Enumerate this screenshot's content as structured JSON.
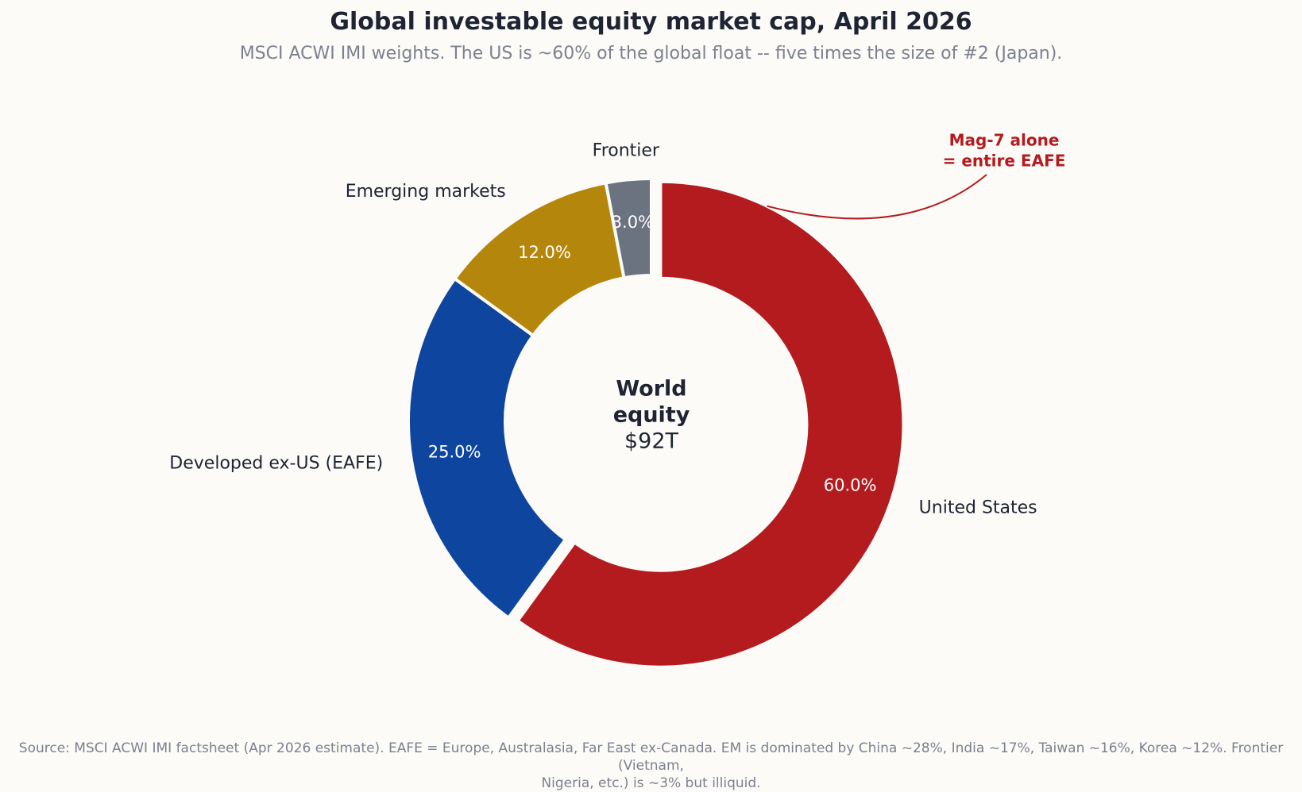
{
  "title": "Global investable equity market cap, April 2026",
  "subtitle": "MSCI ACWI IMI weights. The US is ~60% of the global float -- five times the size of #2 (Japan).",
  "footnote": {
    "line1": "Source: MSCI ACWI IMI factsheet (Apr 2026 estimate). EAFE = Europe, Australasia, Far East ex-Canada. EM is dominated by China ~28%, India ~17%, Taiwan ~16%, Korea ~12%. Frontier (Vietnam,",
    "line2": "Nigeria, etc.) is ~3% but illiquid."
  },
  "chart_data": {
    "type": "pie",
    "donut": true,
    "center_label": [
      "World",
      "equity",
      "$92T"
    ],
    "start_angle_deg": 90,
    "direction": "clockwise",
    "slices": [
      {
        "label": "United States",
        "value": 60.0,
        "pct_label": "60.0%",
        "color": "#b31b1f",
        "exploded": true
      },
      {
        "label": "Developed ex-US (EAFE)",
        "value": 25.0,
        "pct_label": "25.0%",
        "color": "#0e469f",
        "exploded": false
      },
      {
        "label": "Emerging markets",
        "value": 12.0,
        "pct_label": "12.0%",
        "color": "#b5860c",
        "exploded": false
      },
      {
        "label": "Frontier",
        "value": 3.0,
        "pct_label": "3.0%",
        "color": "#6b7280",
        "exploded": false
      }
    ],
    "annotation": {
      "lines": [
        "Mag-7 alone",
        "= entire EAFE"
      ],
      "color": "#b31b1f",
      "target_slice": "United States"
    },
    "legend": "none"
  }
}
